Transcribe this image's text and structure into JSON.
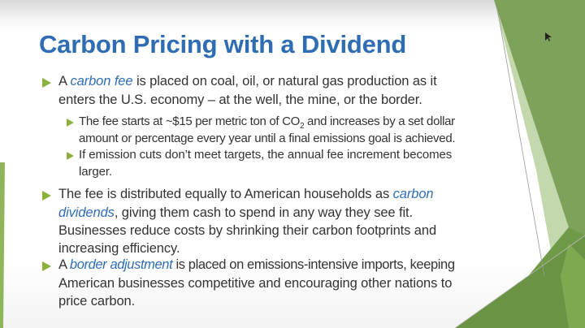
{
  "slide": {
    "title": "Carbon Pricing with a Dividend",
    "accent_color": "#2e6db4",
    "bullet_color": "#8bb13d",
    "bullet_icon": "triangle-right-icon",
    "b1": {
      "l1a": "A ",
      "l1em": "carbon fee",
      "l1b": " is placed on coal, oil, or natural gas production as it",
      "l2": "enters the U.S. economy – at the well, the mine, or the border."
    },
    "b1s1": {
      "l1a": "The fee starts at ~$15 per metric ton of CO",
      "l1sub": "2",
      "l1b": " and increases by a set dollar",
      "l2": "amount or percentage every year until a final emissions goal is achieved."
    },
    "b1s2": {
      "l1": "If emission cuts don’t meet targets, the annual fee increment becomes",
      "l2": "larger."
    },
    "b2": {
      "l1a": "The fee is distributed equally to American households as ",
      "l1em": "carbon",
      "l2em": "dividends",
      "l2b": ", giving them cash to spend in any way they see fit.",
      "l3": "Businesses reduce costs by shrinking their carbon footprints and",
      "l4": "increasing efficiency."
    },
    "b3": {
      "l1a": "A ",
      "l1em": "border adjustment",
      "l1b": " is placed on emissions-intensive imports, keeping",
      "l2": "American businesses competitive and encouraging other nations to",
      "l3": "price carbon."
    }
  }
}
